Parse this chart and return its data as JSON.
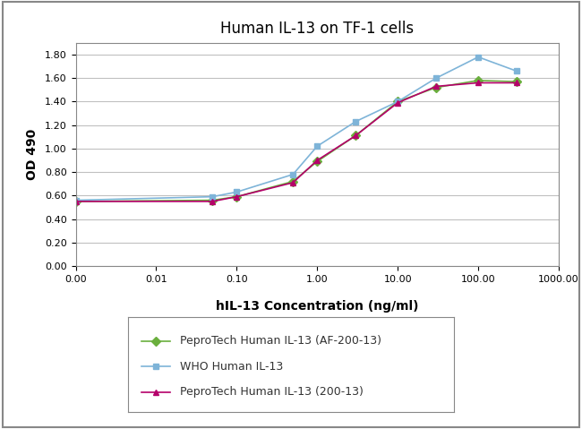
{
  "title": "Human IL-13 on TF-1 cells",
  "xlabel": "hIL-13 Concentration (ng/ml)",
  "ylabel": "OD 490",
  "xlim": [
    0.001,
    1000.0
  ],
  "ylim": [
    0.0,
    1.9
  ],
  "yticks": [
    0.0,
    0.2,
    0.4,
    0.6,
    0.8,
    1.0,
    1.2,
    1.4,
    1.6,
    1.8
  ],
  "xtick_vals": [
    0.001,
    0.01,
    0.1,
    1.0,
    10.0,
    100.0,
    1000.0
  ],
  "xtick_labels": [
    "0.00",
    "0.01",
    "0.10",
    "1.00",
    "10.00",
    "100.00",
    "1000.00"
  ],
  "series": [
    {
      "label": "PeproTech Human IL-13 (AF-200-13)",
      "color": "#6AAF3D",
      "marker": "D",
      "markersize": 5,
      "x": [
        0.001,
        0.05,
        0.1,
        0.5,
        1.0,
        3.0,
        10.0,
        30.0,
        100.0,
        300.0
      ],
      "y": [
        0.55,
        0.56,
        0.59,
        0.72,
        0.89,
        1.11,
        1.4,
        1.52,
        1.58,
        1.57
      ]
    },
    {
      "label": "WHO Human IL-13",
      "color": "#7EB4D8",
      "marker": "s",
      "markersize": 5,
      "x": [
        0.001,
        0.05,
        0.1,
        0.5,
        1.0,
        3.0,
        10.0,
        30.0,
        100.0,
        300.0
      ],
      "y": [
        0.56,
        0.59,
        0.63,
        0.78,
        1.02,
        1.23,
        1.4,
        1.6,
        1.78,
        1.66
      ]
    },
    {
      "label": "PeproTech Human IL-13 (200-13)",
      "color": "#B5006A",
      "marker": "^",
      "markersize": 5,
      "x": [
        0.001,
        0.05,
        0.1,
        0.5,
        1.0,
        3.0,
        10.0,
        30.0,
        100.0,
        300.0
      ],
      "y": [
        0.55,
        0.55,
        0.59,
        0.71,
        0.9,
        1.11,
        1.39,
        1.53,
        1.56,
        1.56
      ]
    }
  ],
  "bg_color": "#FFFFFF",
  "plot_bg_color": "#FFFFFF",
  "grid_color": "#C0C0C0",
  "title_fontsize": 12,
  "axis_label_fontsize": 10,
  "tick_fontsize": 8,
  "legend_fontsize": 9,
  "outer_border_color": "#888888"
}
